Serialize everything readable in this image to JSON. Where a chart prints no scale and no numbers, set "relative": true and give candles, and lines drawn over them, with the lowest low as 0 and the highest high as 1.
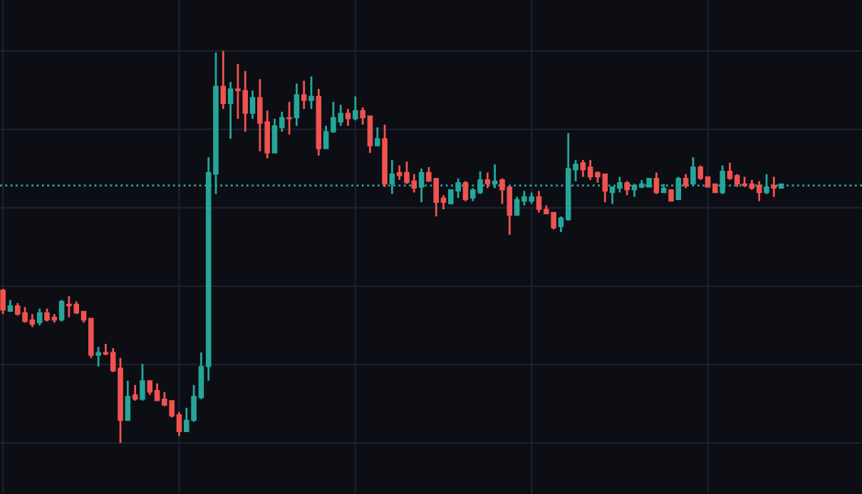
{
  "chart_data": {
    "type": "candlestick",
    "relative": true,
    "grid": true,
    "categories": [
      null,
      null,
      null,
      null,
      null,
      null,
      null,
      null,
      null,
      null,
      null,
      null,
      null,
      null,
      null,
      null,
      null,
      null,
      null,
      null,
      null,
      null,
      null,
      null,
      null,
      null,
      null,
      null,
      null,
      null,
      null,
      null,
      null,
      null,
      null,
      null,
      null,
      null,
      null,
      null,
      null,
      null,
      null,
      null,
      null,
      null,
      null,
      null,
      null,
      null,
      null,
      null,
      null,
      null,
      null,
      null,
      null,
      null,
      null,
      null,
      null,
      null,
      null,
      null,
      null,
      null,
      null,
      null,
      null,
      null,
      null,
      null,
      null,
      null,
      null,
      null,
      null,
      null,
      null,
      null,
      null,
      null,
      null,
      null,
      null,
      null,
      null,
      null,
      null,
      null,
      null,
      null,
      null,
      null,
      null,
      null,
      null,
      null,
      null,
      null,
      null,
      null,
      null,
      null,
      null,
      null,
      null
    ],
    "colors": [
      "#ef5350",
      "#26a69a",
      "#ef5350",
      "#ef5350",
      "#ef5350",
      "#26a69a",
      "#ef5350",
      "#ef5350",
      "#26a69a",
      "#ef5350",
      "#ef5350",
      "#ef5350",
      "#ef5350",
      "#26a69a",
      "#ef5350",
      "#ef5350",
      "#ef5350",
      "#26a69a",
      "#ef5350",
      "#26a69a",
      "#ef5350",
      "#ef5350",
      "#ef5350",
      "#ef5350",
      "#ef5350",
      "#26a69a",
      "#26a69a",
      "#26a69a",
      "#26a69a",
      "#26a69a",
      "#ef5350",
      "#26a69a",
      "#ef5350",
      "#ef5350",
      "#26a69a",
      "#ef5350",
      "#ef5350",
      "#26a69a",
      "#26a69a",
      "#ef5350",
      "#26a69a",
      "#ef5350",
      "#26a69a",
      "#ef5350",
      "#26a69a",
      "#26a69a",
      "#26a69a",
      "#ef5350",
      "#26a69a",
      "#ef5350",
      "#ef5350",
      "#26a69a",
      "#ef5350",
      "#26a69a",
      "#ef5350",
      "#ef5350",
      "#ef5350",
      "#26a69a",
      "#ef5350",
      "#ef5350",
      "#ef5350",
      "#26a69a",
      "#26a69a",
      "#ef5350",
      "#26a69a",
      "#26a69a",
      "#ef5350",
      "#26a69a",
      "#ef5350",
      "#ef5350",
      "#26a69a",
      "#26a69a",
      "#26a69a",
      "#ef5350",
      "#ef5350",
      "#ef5350",
      "#26a69a",
      "#26a69a",
      "#26a69a",
      "#ef5350",
      "#ef5350",
      "#ef5350",
      "#ef5350",
      "#26a69a",
      "#26a69a",
      "#ef5350",
      "#26a69a",
      "#26a69a",
      "#26a69a",
      "#ef5350",
      "#26a69a",
      "#ef5350",
      "#26a69a",
      "#ef5350",
      "#26a69a",
      "#ef5350",
      "#ef5350",
      "#ef5350",
      "#26a69a",
      "#ef5350",
      "#ef5350",
      "#ef5350",
      "#ef5350",
      "#ef5350",
      "#26a69a",
      "#ef5350",
      "#26a69a"
    ],
    "ref_lines": [
      {
        "axis": "y",
        "value": 0.657,
        "color": "#26a69a",
        "line_style": "dotted"
      }
    ],
    "ohlc": [
      [
        0.39,
        0.393,
        0.329,
        0.339
      ],
      [
        0.336,
        0.365,
        0.336,
        0.35
      ],
      [
        0.35,
        0.357,
        0.325,
        0.329
      ],
      [
        0.332,
        0.347,
        0.307,
        0.31
      ],
      [
        0.314,
        0.329,
        0.296,
        0.303
      ],
      [
        0.307,
        0.343,
        0.3,
        0.332
      ],
      [
        0.332,
        0.343,
        0.31,
        0.314
      ],
      [
        0.321,
        0.329,
        0.307,
        0.314
      ],
      [
        0.314,
        0.365,
        0.31,
        0.361
      ],
      [
        0.354,
        0.375,
        0.321,
        0.35
      ],
      [
        0.354,
        0.361,
        0.329,
        0.332
      ],
      [
        0.336,
        0.336,
        0.307,
        0.314
      ],
      [
        0.318,
        0.318,
        0.217,
        0.224
      ],
      [
        0.224,
        0.245,
        0.195,
        0.231
      ],
      [
        0.231,
        0.253,
        0.224,
        0.227
      ],
      [
        0.231,
        0.242,
        0.181,
        0.184
      ],
      [
        0.191,
        0.217,
        0,
        0.058
      ],
      [
        0.058,
        0.159,
        0.058,
        0.119
      ],
      [
        0.123,
        0.148,
        0.108,
        0.112
      ],
      [
        0.112,
        0.202,
        0.108,
        0.159
      ],
      [
        0.159,
        0.159,
        0.123,
        0.13
      ],
      [
        0.134,
        0.152,
        0.108,
        0.108
      ],
      [
        0.112,
        0.13,
        0.094,
        0.097
      ],
      [
        0.108,
        0.108,
        0.065,
        0.069
      ],
      [
        0.072,
        0.079,
        0.018,
        0.029
      ],
      [
        0.029,
        0.09,
        0.029,
        0.058
      ],
      [
        0.058,
        0.148,
        0.054,
        0.119
      ],
      [
        0.116,
        0.231,
        0.112,
        0.195
      ],
      [
        0.195,
        0.729,
        0.159,
        0.69
      ],
      [
        0.686,
        0.996,
        0.635,
        0.91
      ],
      [
        0.91,
        1,
        0.852,
        0.866
      ],
      [
        0.866,
        0.921,
        0.776,
        0.903
      ],
      [
        0.903,
        0.967,
        0.827,
        0.899
      ],
      [
        0.899,
        0.949,
        0.794,
        0.841
      ],
      [
        0.841,
        0.899,
        0.827,
        0.881
      ],
      [
        0.881,
        0.928,
        0.744,
        0.816
      ],
      [
        0.819,
        0.848,
        0.726,
        0.74
      ],
      [
        0.74,
        0.827,
        0.74,
        0.809
      ],
      [
        0.805,
        0.845,
        0.794,
        0.83
      ],
      [
        0.83,
        0.87,
        0.787,
        0.827
      ],
      [
        0.83,
        0.917,
        0.809,
        0.888
      ],
      [
        0.888,
        0.924,
        0.852,
        0.874
      ],
      [
        0.874,
        0.935,
        0.852,
        0.884
      ],
      [
        0.884,
        0.903,
        0.733,
        0.751
      ],
      [
        0.751,
        0.809,
        0.751,
        0.794
      ],
      [
        0.794,
        0.87,
        0.791,
        0.83
      ],
      [
        0.819,
        0.863,
        0.809,
        0.841
      ],
      [
        0.841,
        0.852,
        0.809,
        0.827
      ],
      [
        0.827,
        0.884,
        0.823,
        0.848
      ],
      [
        0.848,
        0.856,
        0.812,
        0.83
      ],
      [
        0.834,
        0.834,
        0.74,
        0.758
      ],
      [
        0.758,
        0.805,
        0.758,
        0.776
      ],
      [
        0.776,
        0.812,
        0.653,
        0.661
      ],
      [
        0.661,
        0.722,
        0.635,
        0.686
      ],
      [
        0.69,
        0.708,
        0.671,
        0.682
      ],
      [
        0.69,
        0.718,
        0.661,
        0.664
      ],
      [
        0.668,
        0.686,
        0.639,
        0.65
      ],
      [
        0.653,
        0.7,
        0.614,
        0.69
      ],
      [
        0.69,
        0.704,
        0.668,
        0.668
      ],
      [
        0.675,
        0.675,
        0.578,
        0.614
      ],
      [
        0.625,
        0.632,
        0.596,
        0.614
      ],
      [
        0.61,
        0.646,
        0.61,
        0.646
      ],
      [
        0.643,
        0.675,
        0.625,
        0.664
      ],
      [
        0.664,
        0.668,
        0.617,
        0.621
      ],
      [
        0.625,
        0.65,
        0.617,
        0.646
      ],
      [
        0.639,
        0.693,
        0.635,
        0.671
      ],
      [
        0.671,
        0.69,
        0.65,
        0.661
      ],
      [
        0.661,
        0.711,
        0.65,
        0.668
      ],
      [
        0.671,
        0.675,
        0.61,
        0.646
      ],
      [
        0.653,
        0.653,
        0.531,
        0.581
      ],
      [
        0.581,
        0.628,
        0.581,
        0.621
      ],
      [
        0.617,
        0.643,
        0.606,
        0.628
      ],
      [
        0.617,
        0.639,
        0.61,
        0.628
      ],
      [
        0.628,
        0.643,
        0.588,
        0.596
      ],
      [
        0.596,
        0.606,
        0.585,
        0.585
      ],
      [
        0.588,
        0.588,
        0.545,
        0.549
      ],
      [
        0.552,
        0.578,
        0.538,
        0.574
      ],
      [
        0.57,
        0.791,
        0.567,
        0.7
      ],
      [
        0.697,
        0.722,
        0.668,
        0.711
      ],
      [
        0.715,
        0.722,
        0.679,
        0.697
      ],
      [
        0.704,
        0.722,
        0.671,
        0.679
      ],
      [
        0.69,
        0.693,
        0.664,
        0.679
      ],
      [
        0.686,
        0.686,
        0.614,
        0.643
      ],
      [
        0.639,
        0.653,
        0.61,
        0.653
      ],
      [
        0.65,
        0.679,
        0.639,
        0.664
      ],
      [
        0.664,
        0.668,
        0.632,
        0.646
      ],
      [
        0.646,
        0.661,
        0.628,
        0.657
      ],
      [
        0.653,
        0.671,
        0.65,
        0.661
      ],
      [
        0.653,
        0.675,
        0.653,
        0.675
      ],
      [
        0.675,
        0.69,
        0.635,
        0.639
      ],
      [
        0.639,
        0.661,
        0.639,
        0.65
      ],
      [
        0.646,
        0.646,
        0.617,
        0.617
      ],
      [
        0.621,
        0.679,
        0.621,
        0.675
      ],
      [
        0.675,
        0.686,
        0.65,
        0.657
      ],
      [
        0.661,
        0.729,
        0.657,
        0.704
      ],
      [
        0.704,
        0.708,
        0.671,
        0.675
      ],
      [
        0.679,
        0.679,
        0.653,
        0.653
      ],
      [
        0.661,
        0.661,
        0.639,
        0.639
      ],
      [
        0.639,
        0.708,
        0.635,
        0.693
      ],
      [
        0.693,
        0.715,
        0.671,
        0.675
      ],
      [
        0.682,
        0.686,
        0.653,
        0.661
      ],
      [
        0.661,
        0.679,
        0.653,
        0.657
      ],
      [
        0.661,
        0.671,
        0.646,
        0.65
      ],
      [
        0.657,
        0.668,
        0.617,
        0.639
      ],
      [
        0.639,
        0.686,
        0.635,
        0.653
      ],
      [
        0.657,
        0.679,
        0.628,
        0.65
      ],
      [
        0.65,
        0.661,
        0.65,
        0.661
      ]
    ]
  }
}
